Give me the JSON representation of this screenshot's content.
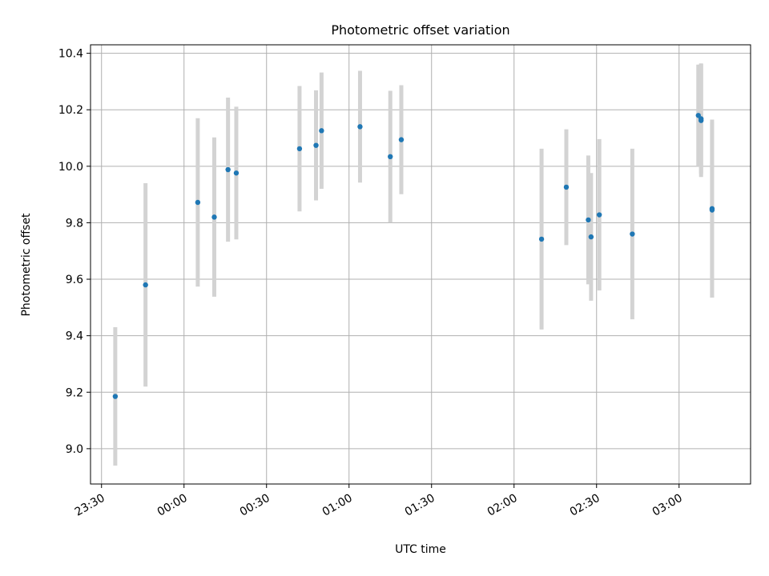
{
  "chart_data": {
    "type": "scatter",
    "title": "Photometric offset variation",
    "xlabel": "UTC time",
    "ylabel": "Photometric offset",
    "x_ticks": [
      "23:30",
      "00:00",
      "00:30",
      "01:00",
      "01:30",
      "02:00",
      "02:30",
      "03:00"
    ],
    "y_ticks": [
      "9.0",
      "9.2",
      "9.4",
      "9.6",
      "9.8",
      "10.0",
      "10.2",
      "10.4"
    ],
    "xlim": [
      "23:26",
      "03:26"
    ],
    "ylim": [
      8.875,
      10.43
    ],
    "grid": true,
    "error_bars": true,
    "colors": {
      "marker": "#1f77b4",
      "error_bar": "#d3d3d3",
      "grid": "#b0b0b0"
    },
    "points": [
      {
        "time": "23:35",
        "value": 9.185,
        "err": 0.245
      },
      {
        "time": "23:46",
        "value": 9.58,
        "err": 0.36
      },
      {
        "time": "00:05",
        "value": 9.872,
        "err": 0.298
      },
      {
        "time": "00:11",
        "value": 9.82,
        "err": 0.282
      },
      {
        "time": "00:16",
        "value": 9.988,
        "err": 0.255
      },
      {
        "time": "00:19",
        "value": 9.976,
        "err": 0.235
      },
      {
        "time": "00:42",
        "value": 10.062,
        "err": 0.222
      },
      {
        "time": "00:48",
        "value": 10.074,
        "err": 0.195
      },
      {
        "time": "00:50",
        "value": 10.126,
        "err": 0.206
      },
      {
        "time": "01:04",
        "value": 10.14,
        "err": 0.198
      },
      {
        "time": "01:15",
        "value": 10.034,
        "err": 0.233
      },
      {
        "time": "01:19",
        "value": 10.094,
        "err": 0.193
      },
      {
        "time": "02:10",
        "value": 9.742,
        "err": 0.32
      },
      {
        "time": "02:19",
        "value": 9.926,
        "err": 0.205
      },
      {
        "time": "02:27",
        "value": 9.81,
        "err": 0.228
      },
      {
        "time": "02:28",
        "value": 9.75,
        "err": 0.226
      },
      {
        "time": "02:31",
        "value": 9.828,
        "err": 0.268
      },
      {
        "time": "02:43",
        "value": 9.76,
        "err": 0.302
      },
      {
        "time": "03:07",
        "value": 10.18,
        "err": 0.18
      },
      {
        "time": "03:08",
        "value": 10.162,
        "err": 0.2
      },
      {
        "time": "03:08",
        "value": 10.168,
        "err": 0.196
      },
      {
        "time": "03:12",
        "value": 9.85,
        "err": 0.315
      },
      {
        "time": "03:12",
        "value": 9.845,
        "err": 0.31
      }
    ]
  }
}
